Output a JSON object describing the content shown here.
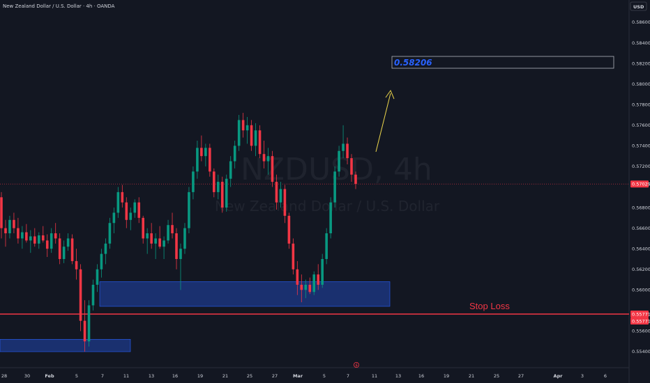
{
  "header": {
    "symbol_title": "New Zealand Dollar / U.S. Dollar · 4h · OANDA",
    "currency_button": "USD"
  },
  "watermark": {
    "ticker": "NZDUSD, 4h",
    "name": "New Zealand Dollar / U.S. Dollar"
  },
  "annotations": {
    "target_price": "0.58206",
    "stop_loss_label": "Stop Loss"
  },
  "price_badges": {
    "current": "0.57029",
    "stop_1": "0.55771",
    "stop_2": "0.55771"
  },
  "colors": {
    "background": "#131722",
    "up_candle": "#089981",
    "down_candle": "#f23645",
    "zone_fill": "#1e3a8a",
    "zone_border": "#2962ff",
    "stop_line": "#f23645",
    "arrow": "#e8d24a"
  },
  "chart_data": {
    "type": "candlestick",
    "y_ticks": [
      "0.58600",
      "0.58400",
      "0.58200",
      "0.58000",
      "0.57800",
      "0.57600",
      "0.57400",
      "0.57200",
      "0.56800",
      "0.56600",
      "0.56400",
      "0.56200",
      "0.56000",
      "0.55600",
      "0.55400"
    ],
    "ylim": [
      0.5535,
      0.5875
    ],
    "x_ticks": [
      "28",
      "30",
      "Feb",
      "5",
      "7",
      "11",
      "13",
      "16",
      "19",
      "21",
      "25",
      "27",
      "Mar",
      "5",
      "7",
      "11",
      "13",
      "16",
      "19",
      "21",
      "25",
      "27",
      "Apr",
      "3",
      "6"
    ],
    "current_price": 0.57029,
    "stop_loss_price": 0.55771,
    "target_price": 0.58206,
    "demand_zones": [
      {
        "name": "upper-demand-zone",
        "low": 0.5584,
        "high": 0.5608
      },
      {
        "name": "lower-demand-zone",
        "low": 0.554,
        "high": 0.5552
      }
    ],
    "candles": [
      [
        0.569,
        0.5695,
        0.565,
        0.566
      ],
      [
        0.566,
        0.5668,
        0.5642,
        0.5655
      ],
      [
        0.5655,
        0.5672,
        0.565,
        0.5668
      ],
      [
        0.5668,
        0.5675,
        0.5655,
        0.566
      ],
      [
        0.566,
        0.567,
        0.5645,
        0.565
      ],
      [
        0.565,
        0.5662,
        0.564,
        0.5656
      ],
      [
        0.5656,
        0.5664,
        0.5646,
        0.5648
      ],
      [
        0.5648,
        0.5658,
        0.5636,
        0.5652
      ],
      [
        0.5652,
        0.566,
        0.5642,
        0.5645
      ],
      [
        0.5645,
        0.5656,
        0.564,
        0.5653
      ],
      [
        0.5653,
        0.5662,
        0.5646,
        0.5648
      ],
      [
        0.5648,
        0.5654,
        0.5632,
        0.564
      ],
      [
        0.564,
        0.566,
        0.5636,
        0.5655
      ],
      [
        0.5655,
        0.5665,
        0.5645,
        0.565
      ],
      [
        0.565,
        0.5655,
        0.5625,
        0.563
      ],
      [
        0.563,
        0.5648,
        0.5626,
        0.5642
      ],
      [
        0.5642,
        0.5655,
        0.5638,
        0.565
      ],
      [
        0.565,
        0.5654,
        0.5625,
        0.5628
      ],
      [
        0.5628,
        0.564,
        0.561,
        0.562
      ],
      [
        0.562,
        0.5625,
        0.556,
        0.557
      ],
      [
        0.557,
        0.559,
        0.554,
        0.555
      ],
      [
        0.555,
        0.559,
        0.5545,
        0.5585
      ],
      [
        0.5585,
        0.561,
        0.558,
        0.5605
      ],
      [
        0.5605,
        0.5625,
        0.5598,
        0.562
      ],
      [
        0.562,
        0.564,
        0.5612,
        0.5635
      ],
      [
        0.5635,
        0.565,
        0.5625,
        0.5645
      ],
      [
        0.5645,
        0.567,
        0.564,
        0.5665
      ],
      [
        0.5665,
        0.568,
        0.5655,
        0.5675
      ],
      [
        0.5675,
        0.57,
        0.567,
        0.5695
      ],
      [
        0.5695,
        0.5702,
        0.568,
        0.5685
      ],
      [
        0.5685,
        0.569,
        0.566,
        0.5668
      ],
      [
        0.5668,
        0.568,
        0.5658,
        0.5675
      ],
      [
        0.5675,
        0.5688,
        0.567,
        0.5685
      ],
      [
        0.5685,
        0.569,
        0.5665,
        0.567
      ],
      [
        0.567,
        0.5672,
        0.5645,
        0.565
      ],
      [
        0.565,
        0.566,
        0.5635,
        0.5655
      ],
      [
        0.5655,
        0.5665,
        0.564,
        0.5645
      ],
      [
        0.5645,
        0.5655,
        0.563,
        0.565
      ],
      [
        0.565,
        0.5662,
        0.564,
        0.5642
      ],
      [
        0.5642,
        0.5652,
        0.563,
        0.5648
      ],
      [
        0.5648,
        0.5668,
        0.5645,
        0.5663
      ],
      [
        0.5663,
        0.5675,
        0.565,
        0.5655
      ],
      [
        0.5655,
        0.566,
        0.562,
        0.563
      ],
      [
        0.563,
        0.5645,
        0.56,
        0.564
      ],
      [
        0.564,
        0.5665,
        0.5635,
        0.566
      ],
      [
        0.566,
        0.57,
        0.5655,
        0.5695
      ],
      [
        0.5695,
        0.572,
        0.5688,
        0.5715
      ],
      [
        0.5715,
        0.5745,
        0.5708,
        0.5738
      ],
      [
        0.5738,
        0.575,
        0.5725,
        0.573
      ],
      [
        0.573,
        0.5742,
        0.572,
        0.5738
      ],
      [
        0.5738,
        0.5742,
        0.571,
        0.5715
      ],
      [
        0.5715,
        0.5718,
        0.569,
        0.5695
      ],
      [
        0.5695,
        0.5712,
        0.5688,
        0.5705
      ],
      [
        0.5705,
        0.571,
        0.5675,
        0.568
      ],
      [
        0.568,
        0.5712,
        0.5676,
        0.5708
      ],
      [
        0.5708,
        0.573,
        0.57,
        0.5725
      ],
      [
        0.5725,
        0.5745,
        0.5718,
        0.574
      ],
      [
        0.574,
        0.577,
        0.5735,
        0.5765
      ],
      [
        0.5765,
        0.5772,
        0.5748,
        0.5755
      ],
      [
        0.5755,
        0.5768,
        0.5742,
        0.576
      ],
      [
        0.576,
        0.5765,
        0.5735,
        0.574
      ],
      [
        0.574,
        0.5762,
        0.573,
        0.5755
      ],
      [
        0.5755,
        0.576,
        0.5728,
        0.5732
      ],
      [
        0.5732,
        0.5745,
        0.5718,
        0.5725
      ],
      [
        0.5725,
        0.5738,
        0.5712,
        0.573
      ],
      [
        0.573,
        0.5735,
        0.57,
        0.5705
      ],
      [
        0.5705,
        0.5712,
        0.5678,
        0.5685
      ],
      [
        0.5685,
        0.5705,
        0.568,
        0.5698
      ],
      [
        0.5698,
        0.5702,
        0.5665,
        0.5672
      ],
      [
        0.5672,
        0.5675,
        0.564,
        0.5645
      ],
      [
        0.5645,
        0.565,
        0.5615,
        0.562
      ],
      [
        0.562,
        0.5628,
        0.5595,
        0.5605
      ],
      [
        0.5605,
        0.5615,
        0.5588,
        0.56
      ],
      [
        0.56,
        0.561,
        0.5592,
        0.5605
      ],
      [
        0.5605,
        0.5612,
        0.5596,
        0.5598
      ],
      [
        0.5598,
        0.5618,
        0.5595,
        0.5615
      ],
      [
        0.5615,
        0.5625,
        0.56,
        0.5605
      ],
      [
        0.5605,
        0.5635,
        0.5602,
        0.563
      ],
      [
        0.563,
        0.566,
        0.5625,
        0.5655
      ],
      [
        0.5655,
        0.569,
        0.565,
        0.5685
      ],
      [
        0.5685,
        0.572,
        0.568,
        0.5715
      ],
      [
        0.5715,
        0.574,
        0.571,
        0.5735
      ],
      [
        0.5735,
        0.576,
        0.5728,
        0.5742
      ],
      [
        0.5742,
        0.5748,
        0.5722,
        0.5728
      ],
      [
        0.5728,
        0.5732,
        0.5705,
        0.5712
      ],
      [
        0.5712,
        0.5715,
        0.5698,
        0.5703
      ]
    ]
  }
}
